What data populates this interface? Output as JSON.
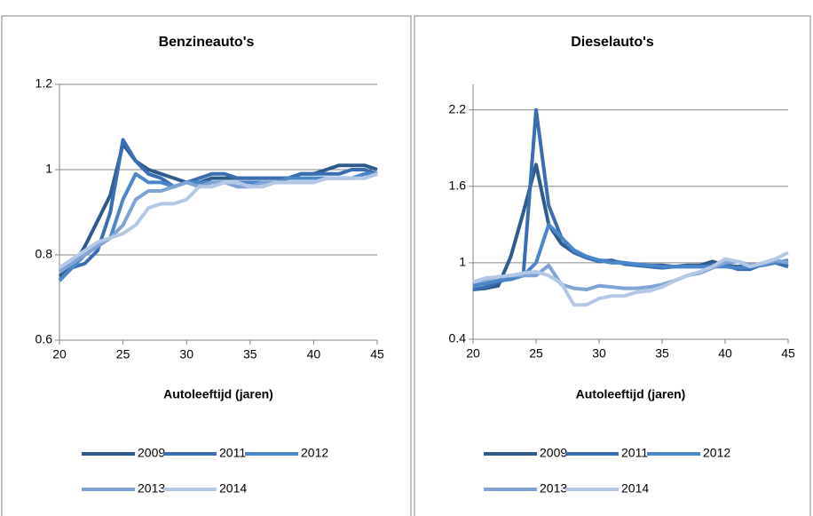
{
  "chart_data": [
    {
      "type": "line",
      "title": "Benzineauto's",
      "xlabel": "Autoleeftijd (jaren)",
      "x": [
        20,
        21,
        22,
        23,
        24,
        25,
        26,
        27,
        28,
        29,
        30,
        31,
        32,
        33,
        34,
        35,
        36,
        37,
        38,
        39,
        40,
        41,
        42,
        43,
        44,
        45
      ],
      "xlim": [
        20,
        45
      ],
      "xticks": [
        20,
        25,
        30,
        35,
        40,
        45
      ],
      "ylim": [
        0.6,
        1.2
      ],
      "yticks": [
        0.6,
        0.8,
        1,
        1.2
      ],
      "grid": true,
      "series": [
        {
          "name": "2009",
          "color": "#2f5a8c",
          "values": [
            0.75,
            0.77,
            0.82,
            0.88,
            0.94,
            1.06,
            1.02,
            1.0,
            0.99,
            0.98,
            0.97,
            0.97,
            0.98,
            0.98,
            0.98,
            0.98,
            0.98,
            0.98,
            0.98,
            0.99,
            0.99,
            1.0,
            1.01,
            1.01,
            1.01,
            1.0
          ]
        },
        {
          "name": "2011",
          "color": "#3a6eb0",
          "values": [
            0.74,
            0.77,
            0.78,
            0.81,
            0.9,
            1.07,
            1.02,
            0.99,
            0.98,
            0.96,
            0.97,
            0.98,
            0.99,
            0.99,
            0.98,
            0.98,
            0.98,
            0.98,
            0.98,
            0.99,
            0.99,
            0.99,
            0.99,
            1.0,
            1.0,
            0.99
          ]
        },
        {
          "name": "2012",
          "color": "#4a86c8",
          "values": [
            0.74,
            0.77,
            0.8,
            0.82,
            0.84,
            0.93,
            0.99,
            0.97,
            0.97,
            0.96,
            0.97,
            0.97,
            0.97,
            0.97,
            0.97,
            0.97,
            0.97,
            0.97,
            0.98,
            0.98,
            0.98,
            0.98,
            0.98,
            0.98,
            0.99,
            0.99
          ]
        },
        {
          "name": "2013",
          "color": "#7ea3d4",
          "values": [
            0.76,
            0.78,
            0.8,
            0.82,
            0.84,
            0.87,
            0.93,
            0.95,
            0.95,
            0.96,
            0.97,
            0.96,
            0.97,
            0.97,
            0.96,
            0.96,
            0.97,
            0.97,
            0.97,
            0.97,
            0.97,
            0.98,
            0.98,
            0.98,
            0.98,
            0.99
          ]
        },
        {
          "name": "2014",
          "color": "#b4c8e6",
          "values": [
            0.77,
            0.79,
            0.81,
            0.83,
            0.84,
            0.85,
            0.87,
            0.91,
            0.92,
            0.92,
            0.93,
            0.96,
            0.96,
            0.97,
            0.97,
            0.96,
            0.96,
            0.97,
            0.97,
            0.97,
            0.97,
            0.98,
            0.98,
            0.98,
            0.98,
            0.99
          ]
        }
      ]
    },
    {
      "type": "line",
      "title": "Dieselauto's",
      "xlabel": "Autoleeftijd (jaren)",
      "x": [
        20,
        21,
        22,
        23,
        24,
        25,
        26,
        27,
        28,
        29,
        30,
        31,
        32,
        33,
        34,
        35,
        36,
        37,
        38,
        39,
        40,
        41,
        42,
        43,
        44,
        45
      ],
      "xlim": [
        20,
        45
      ],
      "xticks": [
        20,
        25,
        30,
        35,
        40,
        45
      ],
      "ylim": [
        0.4,
        2.4
      ],
      "yticks": [
        0.4,
        1,
        1.6,
        2.2
      ],
      "grid": true,
      "series": [
        {
          "name": "2009",
          "color": "#2f5a8c",
          "values": [
            0.79,
            0.8,
            0.82,
            1.05,
            1.4,
            1.77,
            1.3,
            1.15,
            1.08,
            1.04,
            1.02,
            1.01,
            1.0,
            0.98,
            0.98,
            0.98,
            0.97,
            0.98,
            0.98,
            1.01,
            0.98,
            0.97,
            0.98,
            0.99,
            1.0,
            0.99
          ]
        },
        {
          "name": "2011",
          "color": "#3a6eb0",
          "values": [
            0.79,
            0.81,
            0.85,
            0.88,
            0.92,
            2.2,
            1.45,
            1.2,
            1.08,
            1.04,
            1.01,
            1.02,
            0.99,
            0.98,
            0.97,
            0.96,
            0.97,
            0.97,
            0.97,
            0.98,
            0.98,
            0.95,
            0.95,
            0.99,
            1.0,
            0.97
          ]
        },
        {
          "name": "2012",
          "color": "#4a86c8",
          "values": [
            0.82,
            0.84,
            0.86,
            0.87,
            0.9,
            1.0,
            1.3,
            1.2,
            1.1,
            1.05,
            1.02,
            1.0,
            1.0,
            0.99,
            0.98,
            0.97,
            0.97,
            0.97,
            0.97,
            0.97,
            0.97,
            0.96,
            0.97,
            0.98,
            1.0,
            1.02
          ]
        },
        {
          "name": "2013",
          "color": "#7ea3d4",
          "values": [
            0.85,
            0.87,
            0.89,
            0.9,
            0.9,
            0.9,
            0.98,
            0.83,
            0.8,
            0.79,
            0.82,
            0.81,
            0.8,
            0.8,
            0.81,
            0.83,
            0.86,
            0.9,
            0.92,
            0.96,
            1.0,
            1.01,
            0.98,
            0.99,
            1.02,
            1.0
          ]
        },
        {
          "name": "2014",
          "color": "#b4c8e6",
          "values": [
            0.85,
            0.88,
            0.89,
            0.9,
            0.92,
            0.93,
            0.9,
            0.84,
            0.67,
            0.67,
            0.72,
            0.74,
            0.74,
            0.77,
            0.78,
            0.81,
            0.86,
            0.9,
            0.93,
            0.97,
            1.03,
            1.01,
            0.97,
            1.0,
            1.03,
            1.08
          ]
        }
      ]
    }
  ]
}
